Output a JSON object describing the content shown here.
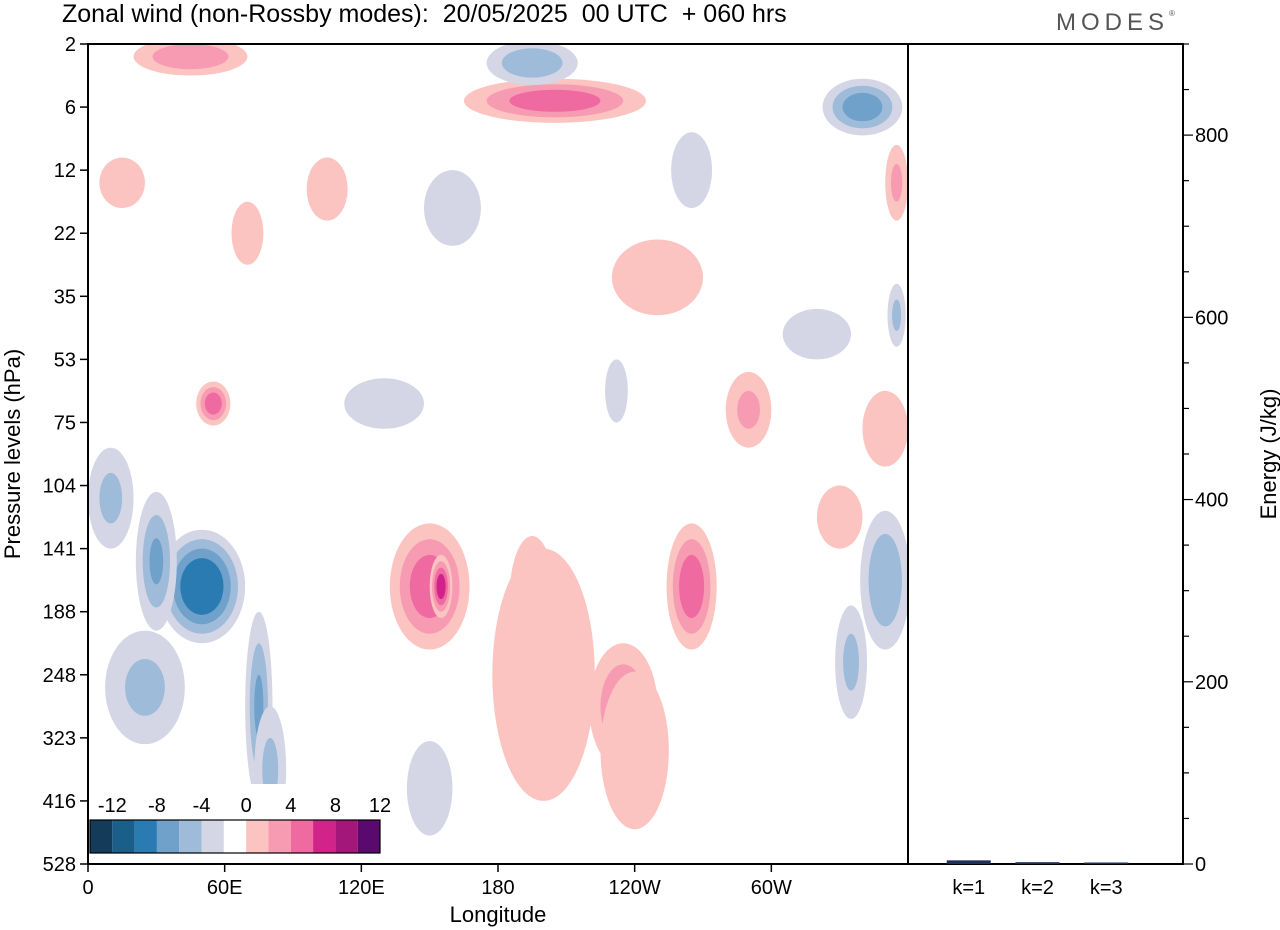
{
  "title": "Zonal wind (non-Rossby modes):  20/05/2025  00 UTC  + 060 hrs",
  "brand": "MODES",
  "brand_mark": "®",
  "chart_data": [
    {
      "type": "heatmap",
      "title": "Zonal wind (non-Rossby modes):  20/05/2025  00 UTC  + 060 hrs",
      "xlabel": "Longitude",
      "ylabel": "Pressure levels (hPa)",
      "x_ticks": [
        "0",
        "60E",
        "120E",
        "180",
        "120W",
        "60W"
      ],
      "x_tick_values": [
        0,
        60,
        120,
        180,
        240,
        300
      ],
      "xlim": [
        0,
        360
      ],
      "y_ticks": [
        "2",
        "6",
        "12",
        "22",
        "35",
        "53",
        "75",
        "104",
        "141",
        "188",
        "248",
        "323",
        "416",
        "528"
      ],
      "colorbar": {
        "labels": [
          "-12",
          "-8",
          "-4",
          "0",
          "4",
          "8",
          "12"
        ],
        "levels": [
          -14,
          -12,
          -10,
          -8,
          -6,
          -4,
          -2,
          2,
          4,
          6,
          8,
          10,
          12,
          14
        ],
        "colors": [
          "#143c5a",
          "#1a5f8a",
          "#2b7bb3",
          "#6fa1cb",
          "#9ebbd9",
          "#d4d6e6",
          "#ffffff",
          "#fbc4c0",
          "#f79bb3",
          "#ef6aa0",
          "#d2238a",
          "#a4177a",
          "#5a0a6e"
        ]
      },
      "blobs": [
        {
          "lon": 50,
          "lev": 8.6,
          "w": 38,
          "h": 1.8,
          "v": -11
        },
        {
          "lon": 30,
          "lev": 8.2,
          "w": 18,
          "h": 2.2,
          "v": -6
        },
        {
          "lon": 75,
          "lev": 10.5,
          "w": 12,
          "h": 3.0,
          "v": -6
        },
        {
          "lon": 10,
          "lev": 7.2,
          "w": 20,
          "h": 1.6,
          "v": -4
        },
        {
          "lon": 25,
          "lev": 10.2,
          "w": 35,
          "h": 1.8,
          "v": -4
        },
        {
          "lon": 80,
          "lev": 11.5,
          "w": 14,
          "h": 2.0,
          "v": -4
        },
        {
          "lon": 150,
          "lev": 8.6,
          "w": 35,
          "h": 2.0,
          "v": 7
        },
        {
          "lon": 155,
          "lev": 8.6,
          "w": 10,
          "h": 1.0,
          "v": 9
        },
        {
          "lon": 195,
          "lev": 8.8,
          "w": 20,
          "h": 2.0,
          "v": 6
        },
        {
          "lon": 235,
          "lev": 10.5,
          "w": 30,
          "h": 2.0,
          "v": 6
        },
        {
          "lon": 265,
          "lev": 8.6,
          "w": 22,
          "h": 2.0,
          "v": 7
        },
        {
          "lon": 200,
          "lev": 10.0,
          "w": 45,
          "h": 4.0,
          "v": 3
        },
        {
          "lon": 240,
          "lev": 11.2,
          "w": 30,
          "h": 2.5,
          "v": 3
        },
        {
          "lon": 350,
          "lev": 8.5,
          "w": 22,
          "h": 2.2,
          "v": -5
        },
        {
          "lon": 335,
          "lev": 9.8,
          "w": 14,
          "h": 1.8,
          "v": -4
        },
        {
          "lon": 340,
          "lev": 1.0,
          "w": 35,
          "h": 0.9,
          "v": -7
        },
        {
          "lon": 205,
          "lev": 0.9,
          "w": 80,
          "h": 0.7,
          "v": 7
        },
        {
          "lon": 195,
          "lev": 0.3,
          "w": 40,
          "h": 0.7,
          "v": -5
        },
        {
          "lon": 45,
          "lev": 0.2,
          "w": 50,
          "h": 0.6,
          "v": 5
        },
        {
          "lon": 55,
          "lev": 5.7,
          "w": 15,
          "h": 0.7,
          "v": 7
        },
        {
          "lon": 15,
          "lev": 2.2,
          "w": 20,
          "h": 0.8,
          "v": 3
        },
        {
          "lon": 105,
          "lev": 2.3,
          "w": 18,
          "h": 1.0,
          "v": 3
        },
        {
          "lon": 250,
          "lev": 3.7,
          "w": 40,
          "h": 1.2,
          "v": 3
        },
        {
          "lon": 290,
          "lev": 5.8,
          "w": 20,
          "h": 1.2,
          "v": 4
        },
        {
          "lon": 355,
          "lev": 2.2,
          "w": 10,
          "h": 1.2,
          "v": 4
        },
        {
          "lon": 160,
          "lev": 2.6,
          "w": 25,
          "h": 1.2,
          "v": -3
        },
        {
          "lon": 265,
          "lev": 2.0,
          "w": 18,
          "h": 1.2,
          "v": -3
        },
        {
          "lon": 130,
          "lev": 5.7,
          "w": 35,
          "h": 0.8,
          "v": -3
        },
        {
          "lon": 320,
          "lev": 4.6,
          "w": 30,
          "h": 0.8,
          "v": -3
        },
        {
          "lon": 355,
          "lev": 4.3,
          "w": 8,
          "h": 1.0,
          "v": -4
        },
        {
          "lon": 350,
          "lev": 6.1,
          "w": 20,
          "h": 1.2,
          "v": 3
        },
        {
          "lon": 330,
          "lev": 7.5,
          "w": 20,
          "h": 1.0,
          "v": 2.5
        },
        {
          "lon": 150,
          "lev": 11.8,
          "w": 20,
          "h": 1.5,
          "v": -3
        },
        {
          "lon": 70,
          "lev": 3.0,
          "w": 14,
          "h": 1.0,
          "v": 3
        },
        {
          "lon": 232,
          "lev": 5.5,
          "w": 10,
          "h": 1.0,
          "v": -3
        }
      ]
    },
    {
      "type": "bar",
      "ylabel": "Energy (J/kg)",
      "categories": [
        "k=1",
        "k=2",
        "k=3"
      ],
      "values": [
        4,
        2,
        1
      ],
      "ylim": [
        0,
        900
      ],
      "y_ticks": [
        0,
        200,
        400,
        600,
        800
      ],
      "bar_color": "#1f2d5a"
    }
  ]
}
